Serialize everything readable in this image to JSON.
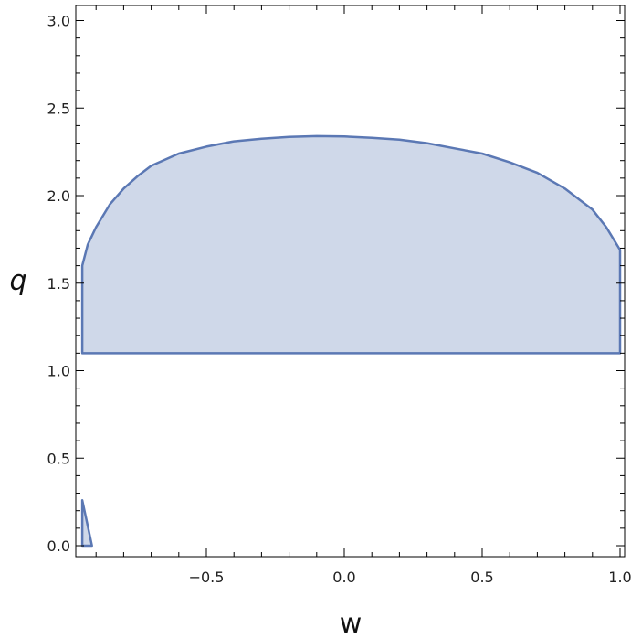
{
  "chart_data": {
    "type": "area",
    "xlabel": "w",
    "ylabel": "q",
    "xlim": [
      -0.95,
      1.0
    ],
    "ylim": [
      0.0,
      3.0
    ],
    "xticks": [
      {
        "value": -0.5,
        "label": "−0.5"
      },
      {
        "value": 0.0,
        "label": "0.0"
      },
      {
        "value": 0.5,
        "label": "0.5"
      },
      {
        "value": 1.0,
        "label": "1.0"
      }
    ],
    "yticks": [
      {
        "value": 0.0,
        "label": "0.0"
      },
      {
        "value": 0.5,
        "label": "0.5"
      },
      {
        "value": 1.0,
        "label": "1.0"
      },
      {
        "value": 1.5,
        "label": "1.5"
      },
      {
        "value": 2.0,
        "label": "2.0"
      },
      {
        "value": 2.5,
        "label": "2.5"
      },
      {
        "value": 3.0,
        "label": "3.0"
      }
    ],
    "grid": false,
    "fill_color": "#cfd8e9",
    "edge_color": "#5b78b4",
    "regions": [
      {
        "points": [
          [
            -0.95,
            1.1
          ],
          [
            -0.95,
            1.6
          ],
          [
            -0.93,
            1.72
          ],
          [
            -0.9,
            1.82
          ],
          [
            -0.85,
            1.95
          ],
          [
            -0.8,
            2.04
          ],
          [
            -0.75,
            2.11
          ],
          [
            -0.7,
            2.17
          ],
          [
            -0.6,
            2.24
          ],
          [
            -0.5,
            2.28
          ],
          [
            -0.4,
            2.31
          ],
          [
            -0.3,
            2.325
          ],
          [
            -0.2,
            2.335
          ],
          [
            -0.1,
            2.34
          ],
          [
            0.0,
            2.338
          ],
          [
            0.1,
            2.33
          ],
          [
            0.2,
            2.32
          ],
          [
            0.3,
            2.3
          ],
          [
            0.4,
            2.27
          ],
          [
            0.5,
            2.24
          ],
          [
            0.6,
            2.19
          ],
          [
            0.7,
            2.13
          ],
          [
            0.8,
            2.04
          ],
          [
            0.9,
            1.92
          ],
          [
            0.95,
            1.82
          ],
          [
            1.0,
            1.69
          ],
          [
            1.0,
            1.1
          ]
        ]
      },
      {
        "points": [
          [
            -0.95,
            0.0
          ],
          [
            -0.95,
            0.26
          ],
          [
            -0.915,
            0.0
          ]
        ]
      }
    ]
  }
}
